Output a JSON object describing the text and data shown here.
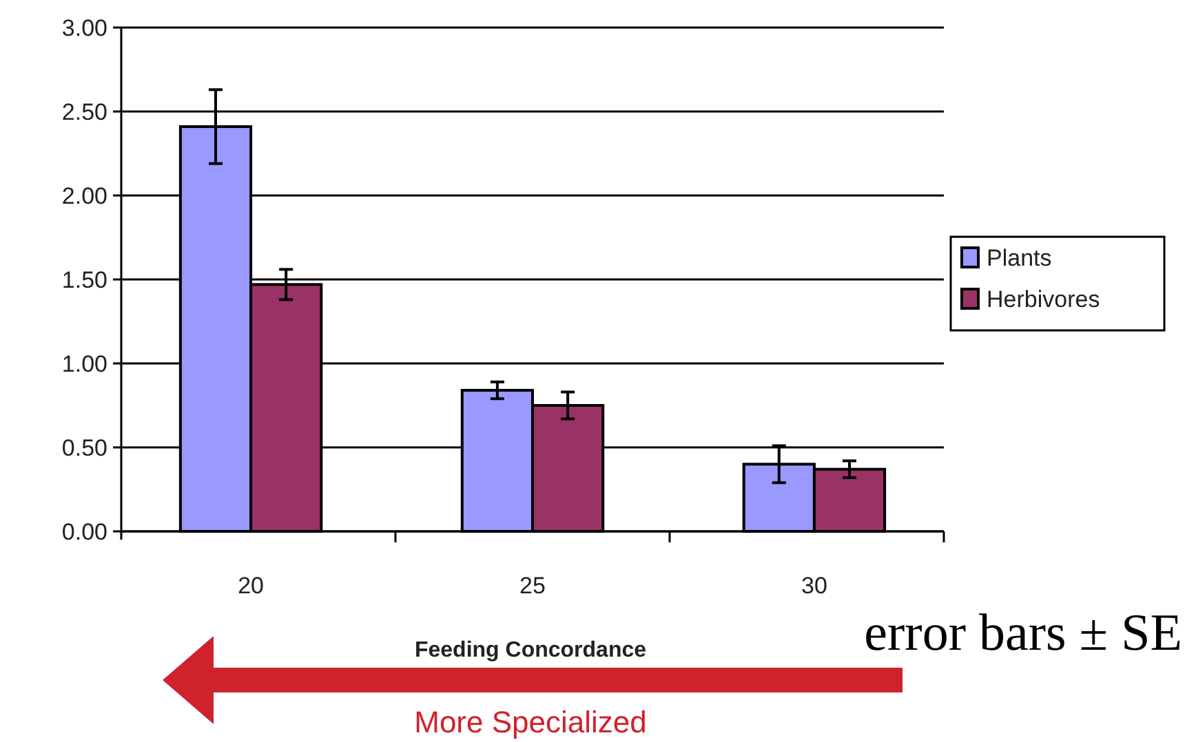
{
  "chart_data": {
    "type": "bar",
    "xlabel": "Feeding Concordance",
    "categories": [
      "20",
      "25",
      "30"
    ],
    "series": [
      {
        "name": "Plants",
        "color": "#9999ff",
        "values": [
          2.41,
          0.84,
          0.4
        ],
        "errors": [
          0.22,
          0.05,
          0.11
        ]
      },
      {
        "name": "Herbivores",
        "color": "#993366",
        "values": [
          1.47,
          0.75,
          0.37
        ],
        "errors": [
          0.09,
          0.08,
          0.05
        ]
      }
    ],
    "ylim": [
      0,
      3
    ],
    "yticks": [
      {
        "value": 0,
        "label": "0.00"
      },
      {
        "value": 0.5,
        "label": "0.50"
      },
      {
        "value": 1,
        "label": "1.00"
      },
      {
        "value": 1.5,
        "label": "1.50"
      },
      {
        "value": 2,
        "label": "2.00"
      },
      {
        "value": 2.5,
        "label": "2.50"
      },
      {
        "value": 3,
        "label": "3.00"
      }
    ],
    "grid": "y",
    "legend": "right",
    "annotations": [
      "error bars ± SE",
      "More Specialized"
    ]
  }
}
